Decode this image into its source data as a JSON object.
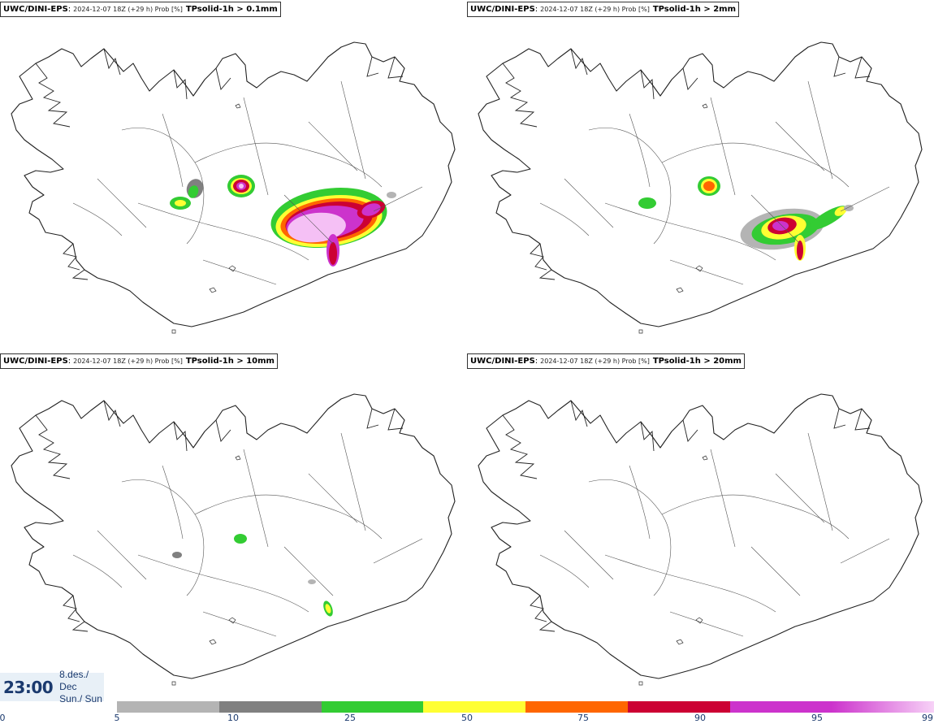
{
  "panels": [
    {
      "source": "UWC/DINI-EPS",
      "colon": ":",
      "run": "2024-12-07 18Z (+29 h) Prob [%]",
      "variable": "TPsolid-1h > 0.1mm"
    },
    {
      "source": "UWC/DINI-EPS",
      "colon": ":",
      "run": "2024-12-07 18Z (+29 h) Prob [%]",
      "variable": "TPsolid-1h > 2mm"
    },
    {
      "source": "UWC/DINI-EPS",
      "colon": ":",
      "run": "2024-12-07 18Z (+29 h) Prob [%]",
      "variable": "TPsolid-1h > 10mm"
    },
    {
      "source": "UWC/DINI-EPS",
      "colon": ":",
      "run": "2024-12-07 18Z (+29 h) Prob [%]",
      "variable": "TPsolid-1h > 20mm"
    }
  ],
  "valid_time": {
    "time": "23:00",
    "date": "8.des./ Dec",
    "weekday": "Sun./ Sun"
  },
  "legend": {
    "ticks": [
      "0",
      "5",
      "10",
      "25",
      "50",
      "75",
      "90",
      "95",
      "99"
    ],
    "colors": [
      "#b4b4b4",
      "#808080",
      "#33cc33",
      "#ffff33",
      "#ff6600",
      "#cc0033",
      "#cc33cc",
      "#f5c0f5"
    ]
  },
  "colors": {
    "coastline": "#222222",
    "time_text": "#1b3a6e"
  }
}
